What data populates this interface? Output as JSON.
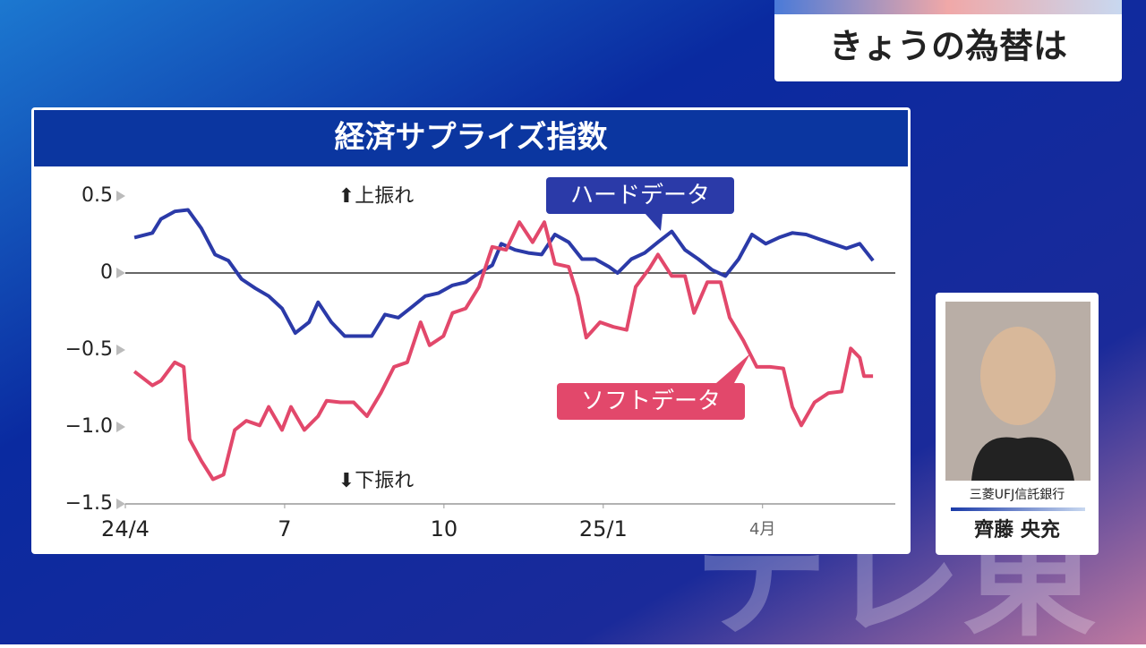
{
  "header": {
    "title": "きょうの為替は"
  },
  "guest": {
    "company": "三菱UFJ信託銀行",
    "name": "齊藤 央充"
  },
  "watermark": "テレ東",
  "chart_data": {
    "type": "line",
    "title": "経済サプライズ指数",
    "annotations": {
      "up": "⬆上振れ",
      "down": "⬇下振れ"
    },
    "xlim": [
      0,
      14.5
    ],
    "xticks": [
      {
        "value": 0,
        "label": "24/4"
      },
      {
        "value": 3,
        "label": "7"
      },
      {
        "value": 6,
        "label": "10"
      },
      {
        "value": 9,
        "label": "25/1"
      },
      {
        "value": 12,
        "label": "4月"
      }
    ],
    "ylim": [
      -1.5,
      0.6
    ],
    "yticks": [
      0.5,
      0,
      {
        "value": -0.5,
        "label": "−0.5"
      },
      {
        "value": -1.0,
        "label": "−1.0"
      },
      {
        "value": -1.5,
        "label": "−1.5"
      }
    ],
    "series": [
      {
        "name": "ハードデータ",
        "color": "#2b3aa8",
        "x": [
          0.17,
          0.51,
          0.67,
          0.93,
          1.18,
          1.43,
          1.69,
          1.94,
          2.19,
          2.45,
          2.7,
          2.95,
          3.2,
          3.46,
          3.63,
          3.88,
          4.13,
          4.38,
          4.64,
          4.89,
          5.14,
          5.4,
          5.65,
          5.9,
          6.16,
          6.41,
          6.66,
          6.91,
          7.08,
          7.34,
          7.59,
          7.84,
          8.09,
          8.35,
          8.6,
          8.85,
          9.11,
          9.27,
          9.53,
          9.78,
          10.03,
          10.29,
          10.54,
          10.79,
          11.05,
          11.3,
          11.55,
          11.8,
          12.06,
          12.31,
          12.56,
          12.82,
          13.07,
          13.32,
          13.58,
          13.83,
          14.08
        ],
        "values": [
          0.23,
          0.26,
          0.35,
          0.4,
          0.41,
          0.29,
          0.12,
          0.08,
          -0.04,
          -0.1,
          -0.15,
          -0.23,
          -0.39,
          -0.32,
          -0.19,
          -0.32,
          -0.41,
          -0.41,
          -0.41,
          -0.27,
          -0.29,
          -0.22,
          -0.15,
          -0.13,
          -0.08,
          -0.06,
          0,
          0.05,
          0.19,
          0.15,
          0.13,
          0.12,
          0.25,
          0.2,
          0.09,
          0.09,
          0.04,
          0,
          0.09,
          0.13,
          0.2,
          0.27,
          0.15,
          0.09,
          0.02,
          -0.02,
          0.09,
          0.25,
          0.19,
          0.23,
          0.26,
          0.25,
          0.22,
          0.19,
          0.16,
          0.19,
          0.08
        ]
      },
      {
        "name": "ソフトデータ",
        "color": "#e2486b",
        "x": [
          0.17,
          0.51,
          0.67,
          0.93,
          1.1,
          1.21,
          1.43,
          1.65,
          1.85,
          2.06,
          2.28,
          2.53,
          2.7,
          2.95,
          3.12,
          3.37,
          3.63,
          3.79,
          4.05,
          4.3,
          4.55,
          4.81,
          5.06,
          5.31,
          5.56,
          5.73,
          5.99,
          6.16,
          6.41,
          6.66,
          6.91,
          7.17,
          7.42,
          7.67,
          7.89,
          8.09,
          8.35,
          8.52,
          8.68,
          8.94,
          9.19,
          9.44,
          9.61,
          9.87,
          10.03,
          10.29,
          10.54,
          10.71,
          10.96,
          11.21,
          11.38,
          11.64,
          11.89,
          12.14,
          12.39,
          12.56,
          12.73,
          12.98,
          13.24,
          13.49,
          13.66,
          13.83,
          13.91,
          14.08
        ],
        "values": [
          -0.64,
          -0.73,
          -0.7,
          -0.58,
          -0.61,
          -1.08,
          -1.22,
          -1.34,
          -1.31,
          -1.02,
          -0.96,
          -0.99,
          -0.87,
          -1.02,
          -0.87,
          -1.02,
          -0.93,
          -0.83,
          -0.84,
          -0.84,
          -0.93,
          -0.78,
          -0.61,
          -0.58,
          -0.32,
          -0.47,
          -0.41,
          -0.26,
          -0.23,
          -0.09,
          0.17,
          0.15,
          0.33,
          0.2,
          0.33,
          0.06,
          0.04,
          -0.15,
          -0.42,
          -0.32,
          -0.35,
          -0.37,
          -0.09,
          0.03,
          0.12,
          -0.02,
          -0.02,
          -0.26,
          -0.06,
          -0.06,
          -0.29,
          -0.44,
          -0.61,
          -0.61,
          -0.62,
          -0.87,
          -0.99,
          -0.84,
          -0.78,
          -0.77,
          -0.49,
          -0.55,
          -0.67,
          -0.67
        ]
      }
    ]
  }
}
